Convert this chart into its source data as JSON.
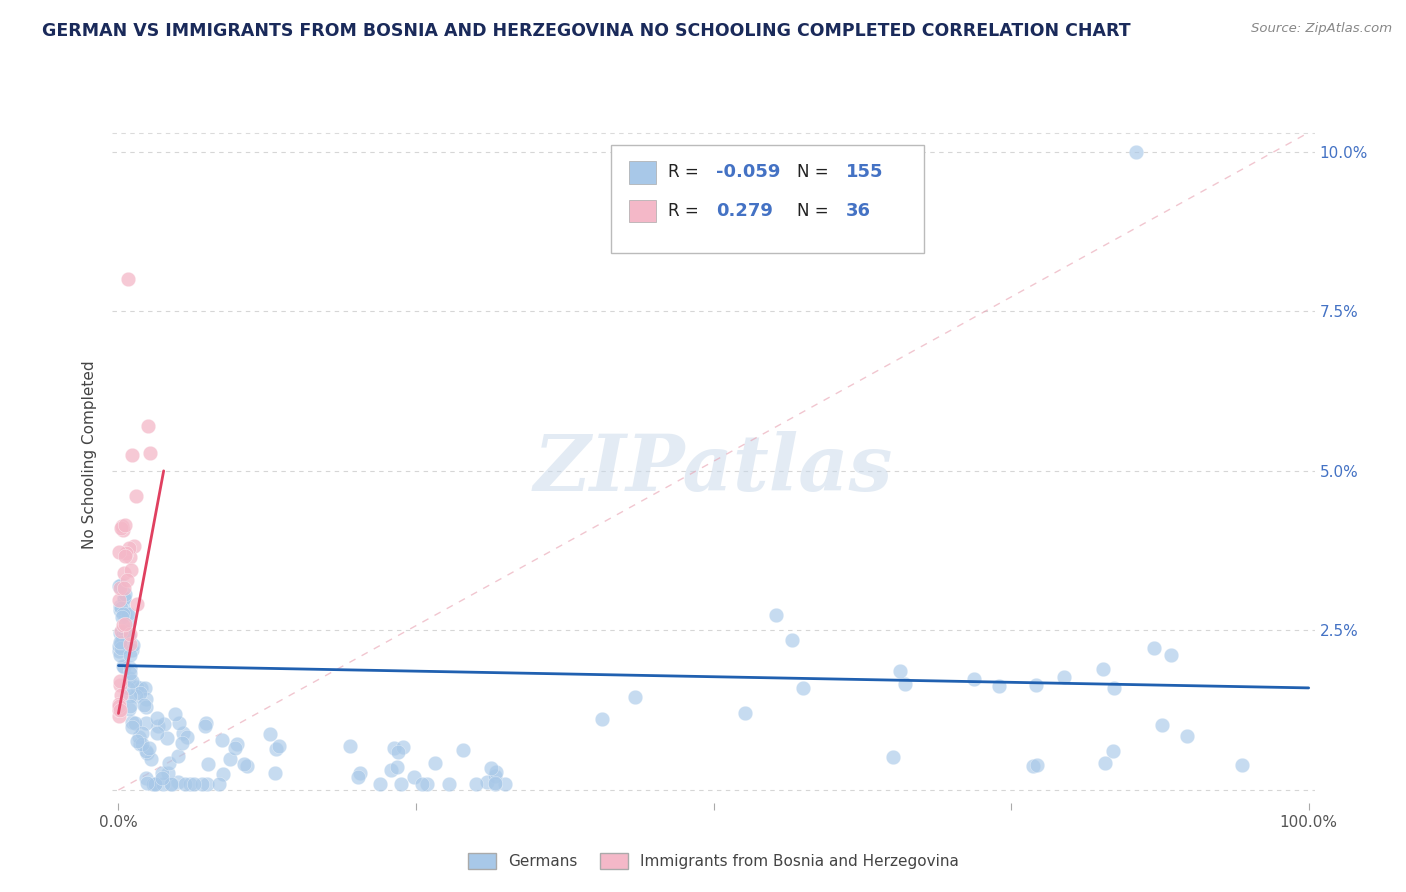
{
  "title": "GERMAN VS IMMIGRANTS FROM BOSNIA AND HERZEGOVINA NO SCHOOLING COMPLETED CORRELATION CHART",
  "source": "Source: ZipAtlas.com",
  "ylabel": "No Schooling Completed",
  "blue_color": "#a8c8e8",
  "pink_color": "#f4b8c8",
  "blue_line_color": "#2060b0",
  "pink_line_color": "#e04060",
  "diag_color": "#e8a0b0",
  "background_color": "#ffffff",
  "grid_color": "#cccccc",
  "title_color": "#1a2a5a",
  "watermark_color": "#c8d8ea",
  "tick_color": "#4472c4",
  "r_value_color": "#4472c4",
  "n_value_color": "#4472c4",
  "label_text_color": "#333333"
}
